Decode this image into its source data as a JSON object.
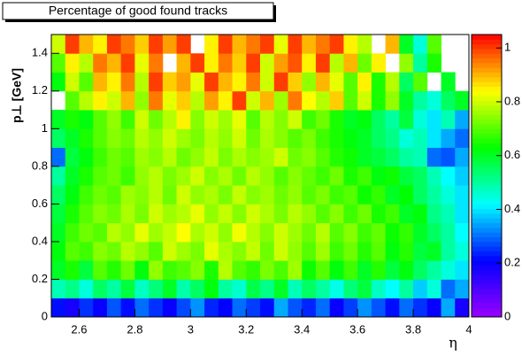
{
  "chart_data": {
    "type": "heatmap",
    "title": "Percentage of good found tracks",
    "x_label": "η",
    "y_label": "p⊥ [GeV]",
    "xbins": [
      2.5,
      2.55,
      2.6,
      2.65,
      2.7,
      2.75,
      2.8,
      2.85,
      2.9,
      2.95,
      3.0,
      3.05,
      3.1,
      3.15,
      3.2,
      3.25,
      3.3,
      3.35,
      3.4,
      3.45,
      3.5,
      3.55,
      3.6,
      3.65,
      3.7,
      3.75,
      3.8,
      3.85,
      3.9,
      3.95,
      4.0
    ],
    "ybins": [
      0,
      0.1,
      0.2,
      0.3,
      0.4,
      0.5,
      0.6,
      0.7,
      0.8,
      0.9,
      1.0,
      1.1,
      1.2,
      1.3,
      1.4,
      1.5
    ],
    "values": [
      [
        0.22,
        0.18,
        0.25,
        0.2,
        0.28,
        0.22,
        0.3,
        0.25,
        0.2,
        0.27,
        0.33,
        0.24,
        0.21,
        0.3,
        0.26,
        0.22,
        0.35,
        0.28,
        0.24,
        0.3,
        0.2,
        0.26,
        0.33,
        0.28,
        0.22,
        0.3,
        0.25,
        0.2,
        0.35,
        0.18
      ],
      [
        0.48,
        0.52,
        0.45,
        0.55,
        0.5,
        0.58,
        0.47,
        0.53,
        0.6,
        0.49,
        0.55,
        0.62,
        0.5,
        0.46,
        0.57,
        0.52,
        0.6,
        0.48,
        0.55,
        0.5,
        0.44,
        0.53,
        0.58,
        0.47,
        0.42,
        0.5,
        0.38,
        0.45,
        0.3,
        0.35
      ],
      [
        0.6,
        0.65,
        0.58,
        0.7,
        0.66,
        0.72,
        0.62,
        0.75,
        0.68,
        0.7,
        0.74,
        0.65,
        0.78,
        0.7,
        0.67,
        0.73,
        0.69,
        0.76,
        0.64,
        0.7,
        0.62,
        0.68,
        0.6,
        0.66,
        0.58,
        0.62,
        0.55,
        0.5,
        0.45,
        0.4
      ],
      [
        0.62,
        0.7,
        0.68,
        0.74,
        0.72,
        0.78,
        0.75,
        0.7,
        0.8,
        0.76,
        0.73,
        0.82,
        0.77,
        0.74,
        0.79,
        0.72,
        0.8,
        0.75,
        0.7,
        0.76,
        0.68,
        0.72,
        0.66,
        0.7,
        0.62,
        0.66,
        0.58,
        0.6,
        0.5,
        0.45
      ],
      [
        0.6,
        0.68,
        0.72,
        0.7,
        0.78,
        0.75,
        0.82,
        0.76,
        0.79,
        0.84,
        0.77,
        0.8,
        0.75,
        0.83,
        0.78,
        0.74,
        0.8,
        0.76,
        0.72,
        0.78,
        0.7,
        0.74,
        0.68,
        0.71,
        0.64,
        0.67,
        0.6,
        0.55,
        0.5,
        0.42
      ],
      [
        0.58,
        0.65,
        0.7,
        0.74,
        0.72,
        0.77,
        0.73,
        0.8,
        0.76,
        0.78,
        0.82,
        0.75,
        0.79,
        0.74,
        0.8,
        0.77,
        0.73,
        0.78,
        0.75,
        0.7,
        0.74,
        0.68,
        0.72,
        0.65,
        0.68,
        0.6,
        0.62,
        0.52,
        0.48,
        0.4
      ],
      [
        0.55,
        0.62,
        0.68,
        0.72,
        0.7,
        0.76,
        0.74,
        0.78,
        0.72,
        0.8,
        0.75,
        0.77,
        0.73,
        0.79,
        0.74,
        0.76,
        0.72,
        0.75,
        0.7,
        0.73,
        0.68,
        0.7,
        0.64,
        0.67,
        0.6,
        0.63,
        0.55,
        0.5,
        0.45,
        0.4
      ],
      [
        0.5,
        0.6,
        0.65,
        0.7,
        0.72,
        0.68,
        0.75,
        0.78,
        0.73,
        0.76,
        0.8,
        0.74,
        0.77,
        0.72,
        0.78,
        0.75,
        0.7,
        0.74,
        0.71,
        0.68,
        0.72,
        0.65,
        0.68,
        0.62,
        0.64,
        0.58,
        0.55,
        0.48,
        0.42,
        0.38
      ],
      [
        0.3,
        0.58,
        0.62,
        0.68,
        0.72,
        0.7,
        0.76,
        0.74,
        0.78,
        0.72,
        0.75,
        0.79,
        0.73,
        0.77,
        0.74,
        0.76,
        0.8,
        0.72,
        0.74,
        0.7,
        0.66,
        0.64,
        0.6,
        0.58,
        0.55,
        0.5,
        0.48,
        0.3,
        0.28,
        0.35
      ],
      [
        0.55,
        0.6,
        0.65,
        0.7,
        0.74,
        0.72,
        0.78,
        0.75,
        0.8,
        0.76,
        0.73,
        0.78,
        0.75,
        0.8,
        0.72,
        0.77,
        0.74,
        0.7,
        0.73,
        0.68,
        0.65,
        0.62,
        0.6,
        0.55,
        0.52,
        0.45,
        0.48,
        0.4,
        0.35,
        0.3
      ],
      [
        0.6,
        0.65,
        0.62,
        0.7,
        0.75,
        0.68,
        0.8,
        0.72,
        0.78,
        0.85,
        0.74,
        0.8,
        0.76,
        0.82,
        0.7,
        0.78,
        0.74,
        0.8,
        0.68,
        0.72,
        0.65,
        0.6,
        0.62,
        0.55,
        0.5,
        0.58,
        0.45,
        0.4,
        0.48,
        0.35
      ],
      [
        null,
        0.7,
        0.78,
        0.85,
        0.8,
        0.9,
        0.75,
        0.95,
        0.82,
        0.88,
        0.78,
        0.92,
        0.85,
        1.0,
        0.8,
        0.9,
        0.76,
        0.95,
        0.84,
        0.78,
        0.88,
        0.7,
        0.8,
        0.65,
        0.75,
        0.6,
        0.5,
        0.45,
        0.55,
        0.6
      ],
      [
        0.62,
        0.8,
        0.7,
        0.9,
        0.85,
        0.95,
        0.78,
        1.0,
        0.88,
        0.92,
        0.82,
        1.0,
        0.9,
        0.85,
        0.95,
        0.8,
        1.0,
        0.88,
        0.75,
        0.9,
        0.82,
        0.7,
        0.85,
        0.65,
        0.78,
        0.55,
        0.7,
        null,
        0.6,
        null
      ],
      [
        0.7,
        0.85,
        0.78,
        0.95,
        0.9,
        1.0,
        0.82,
        0.95,
        null,
        0.9,
        1.0,
        0.85,
        0.95,
        0.88,
        1.0,
        0.8,
        0.92,
        0.98,
        0.85,
        1.0,
        0.78,
        0.9,
        0.72,
        0.85,
        null,
        0.75,
        0.5,
        0.65,
        null,
        null
      ],
      [
        0.8,
        1.0,
        0.9,
        0.85,
        1.0,
        0.95,
        0.88,
        1.0,
        0.92,
        1.0,
        null,
        0.85,
        1.0,
        0.9,
        0.95,
        1.0,
        0.82,
        1.0,
        0.9,
        0.95,
        1.0,
        0.85,
        0.78,
        null,
        0.9,
        0.6,
        0.45,
        0.7,
        null,
        null
      ]
    ],
    "xlim": [
      2.5,
      4.0
    ],
    "xticks": [
      2.6,
      2.8,
      3,
      3.2,
      3.4,
      3.6,
      3.8,
      4
    ],
    "ylim": [
      0,
      1.5
    ],
    "yticks": [
      0,
      0.2,
      0.4,
      0.6,
      0.8,
      1,
      1.2,
      1.4
    ],
    "zlim": [
      0,
      1.05
    ],
    "zticks": [
      0,
      0.2,
      0.4,
      0.6,
      0.8,
      1
    ],
    "palette": [
      "#9900ff",
      "#0000ff",
      "#00ffff",
      "#00ff00",
      "#ffff00",
      "#ff0000"
    ]
  }
}
